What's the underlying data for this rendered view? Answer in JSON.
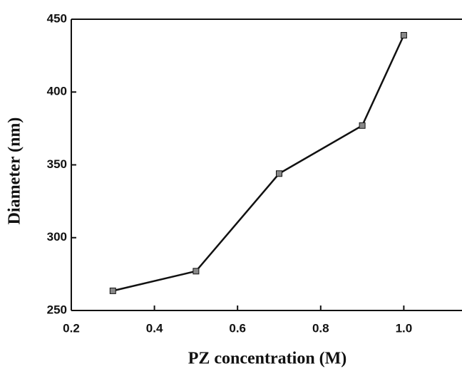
{
  "chart_data": {
    "type": "line",
    "x_label": "PZ concentration (M)",
    "y_label": "Diameter (nm)",
    "x": [
      0.3,
      0.5,
      0.7,
      0.9,
      1.0
    ],
    "series": [
      {
        "values": [
          263.5,
          277,
          344,
          377,
          439
        ],
        "color": "#111111"
      }
    ],
    "xlim": [
      0.2,
      1.14
    ],
    "ylim": [
      250,
      450
    ],
    "xticks": [
      0.2,
      0.4,
      0.6,
      0.8,
      {
        "value": 1.0,
        "label": "1.0"
      }
    ],
    "yticks": [
      250,
      300,
      350,
      400,
      450
    ]
  }
}
